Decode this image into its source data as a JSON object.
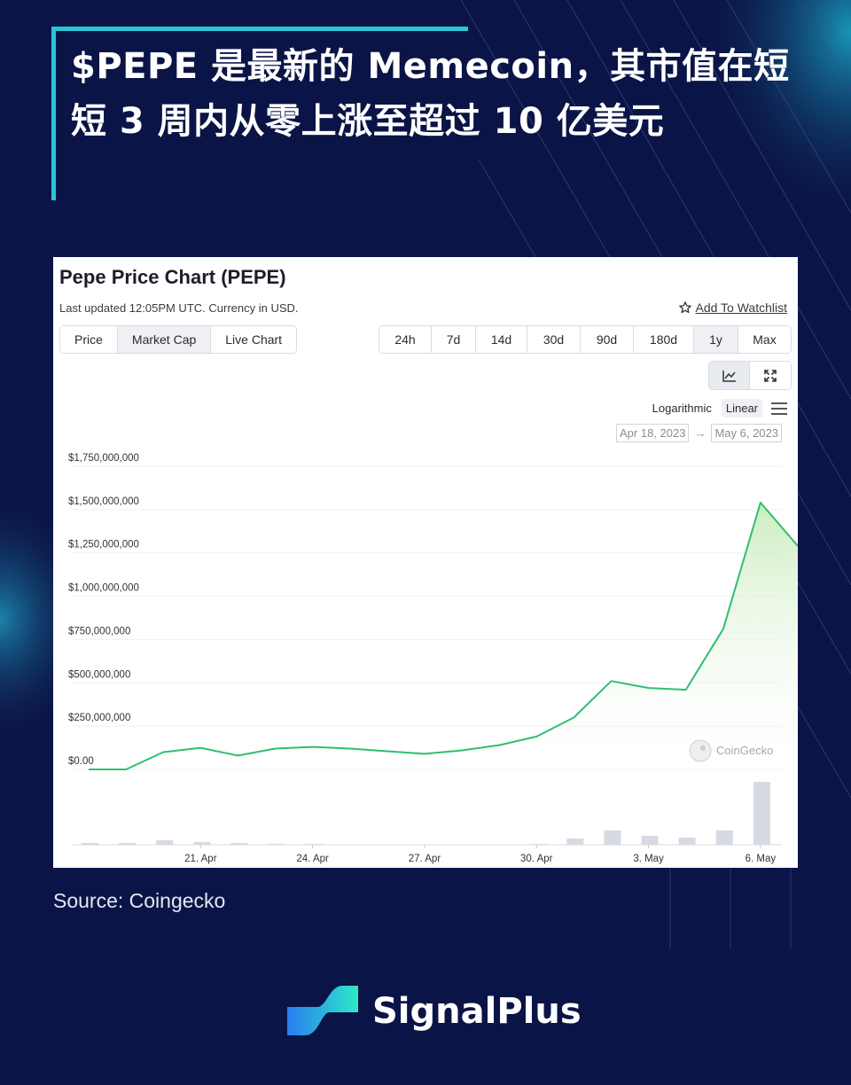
{
  "headline": "$PEPE 是最新的 Memecoin，其市值在短短 3 周内从零上涨至超过 10 亿美元",
  "source": "Source: Coingecko",
  "brand": {
    "name": "SignalPlus"
  },
  "panel": {
    "title": "Pepe Price Chart (PEPE)",
    "subtitle": "Last updated 12:05PM UTC. Currency in USD.",
    "watchlist_label": "Add To Watchlist",
    "tabs": [
      "Price",
      "Market Cap",
      "Live Chart"
    ],
    "active_tab": "Market Cap",
    "ranges": [
      "24h",
      "7d",
      "14d",
      "30d",
      "90d",
      "180d",
      "1y",
      "Max"
    ],
    "active_range": "1y",
    "scale_options": [
      "Logarithmic",
      "Linear"
    ],
    "active_scale": "Linear",
    "date_from": "Apr 18, 2023",
    "date_to": "May 6, 2023",
    "date_arrow": "→",
    "watermark": "CoinGecko"
  },
  "colors": {
    "background": "#0b1446",
    "accent": "#29c6d9",
    "line": "#2fbf71",
    "area": "#dff3d6",
    "volume": "#d7dae2"
  },
  "chart_data": {
    "type": "area",
    "ylabel": "",
    "xlabel": "",
    "ylim": [
      0,
      1750000000
    ],
    "yticks": [
      0,
      250000000,
      500000000,
      750000000,
      1000000000,
      1250000000,
      1500000000,
      1750000000
    ],
    "ytick_labels": [
      "$0.00",
      "$250,000,000",
      "$500,000,000",
      "$750,000,000",
      "$1,000,000,000",
      "$1,250,000,000",
      "$1,500,000,000",
      "$1,750,000,000"
    ],
    "xlim": [
      "2023-04-18",
      "2023-05-07"
    ],
    "xticks": [
      "2023-04-21",
      "2023-04-24",
      "2023-04-27",
      "2023-04-30",
      "2023-05-03",
      "2023-05-06"
    ],
    "xtick_labels": [
      "21. Apr",
      "24. Apr",
      "27. Apr",
      "30. Apr",
      "3. May",
      "6. May"
    ],
    "grid": true,
    "series": [
      {
        "x": [
          "2023-04-18",
          "2023-04-19",
          "2023-04-20",
          "2023-04-21",
          "2023-04-22",
          "2023-04-23",
          "2023-04-24",
          "2023-04-25",
          "2023-04-26",
          "2023-04-27",
          "2023-04-28",
          "2023-04-29",
          "2023-04-30",
          "2023-05-01",
          "2023-05-02",
          "2023-05-03",
          "2023-05-04",
          "2023-05-05",
          "2023-05-06",
          "2023-05-07"
        ],
        "values": [
          0,
          0,
          100000000,
          125000000,
          80000000,
          120000000,
          130000000,
          120000000,
          105000000,
          90000000,
          110000000,
          140000000,
          190000000,
          300000000,
          510000000,
          470000000,
          460000000,
          810000000,
          1540000000,
          1290000000
        ]
      }
    ],
    "volume": {
      "x": [
        "2023-04-18",
        "2023-04-19",
        "2023-04-20",
        "2023-04-21",
        "2023-04-22",
        "2023-04-23",
        "2023-04-24",
        "2023-04-25",
        "2023-04-26",
        "2023-04-27",
        "2023-04-28",
        "2023-04-29",
        "2023-04-30",
        "2023-05-01",
        "2023-05-02",
        "2023-05-03",
        "2023-05-04",
        "2023-05-05",
        "2023-05-06"
      ],
      "values": [
        2,
        2,
        5,
        3,
        2,
        1,
        1,
        0,
        0,
        0,
        0,
        0,
        1,
        7,
        16,
        10,
        8,
        16,
        70
      ],
      "max": 70
    }
  }
}
